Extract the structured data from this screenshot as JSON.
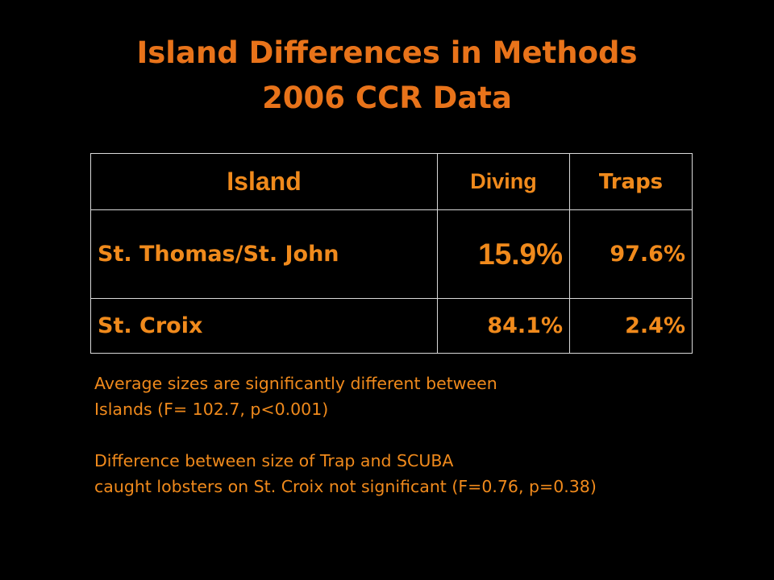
{
  "title": {
    "line1": "Island Differences in Methods",
    "line2": "2006 CCR Data"
  },
  "table": {
    "headers": [
      "Island",
      "Diving",
      "Traps"
    ],
    "rows": [
      {
        "island": "St. Thomas/St. John",
        "diving": "15.9%",
        "traps": "97.6%"
      },
      {
        "island": "St. Croix",
        "diving": "84.1%",
        "traps": "2.4%"
      }
    ]
  },
  "notes": {
    "p1_line1": "Average sizes are significantly different between",
    "p1_line2": "Islands (F= 102.7, p<0.001)",
    "p2_line1": "Difference between size of Trap and SCUBA",
    "p2_line2": "caught lobsters on St. Croix not significant  (F=0.76, p=0.38)"
  },
  "colors": {
    "background": "#000000",
    "title": "#e8731a",
    "text": "#f08a1c",
    "grid": "#d9d9d9"
  }
}
